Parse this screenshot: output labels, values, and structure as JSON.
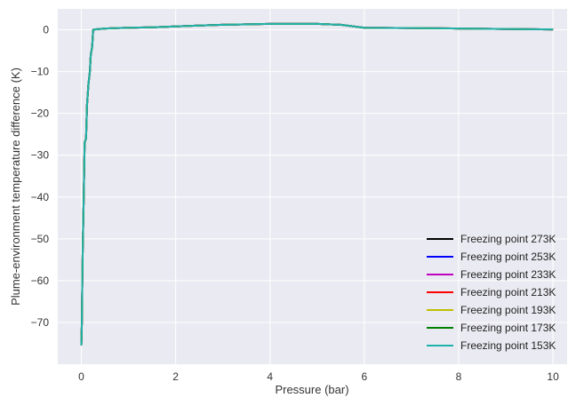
{
  "chart_data": {
    "type": "line",
    "title": "",
    "xlabel": "Pressure (bar)",
    "ylabel": "Plume-environment temperature difference (K)",
    "xlim": [
      -0.5,
      10.3
    ],
    "ylim": [
      -80,
      5
    ],
    "xticks": [
      0,
      2,
      4,
      6,
      8,
      10
    ],
    "yticks": [
      0,
      -10,
      -20,
      -30,
      -40,
      -50,
      -60,
      -70
    ],
    "x_tick_labels": [
      "0",
      "2",
      "4",
      "6",
      "8",
      "10"
    ],
    "y_tick_labels": [
      "0",
      "−10",
      "−20",
      "−30",
      "−40",
      "−50",
      "−60",
      "−70"
    ],
    "grid": true,
    "legend_position": "bottom-right",
    "background": "#eaeaf2",
    "series": [
      {
        "name": "Freezing point 273K",
        "color": "#000000"
      },
      {
        "name": "Freezing point 253K",
        "color": "#0000ff"
      },
      {
        "name": "Freezing point 233K",
        "color": "#bf00bf"
      },
      {
        "name": "Freezing point 213K",
        "color": "#ff0000"
      },
      {
        "name": "Freezing point 193K",
        "color": "#bfbf00"
      },
      {
        "name": "Freezing point 173K",
        "color": "#008000"
      },
      {
        "name": "Freezing point 153K",
        "color": "#20b2aa"
      }
    ],
    "x": [
      0.0,
      0.01,
      0.02,
      0.03,
      0.05,
      0.07,
      0.1,
      0.12,
      0.15,
      0.18,
      0.2,
      0.23,
      0.25,
      0.28,
      0.5,
      1.0,
      1.5,
      2.0,
      2.5,
      3.0,
      3.5,
      4.0,
      4.5,
      5.0,
      5.5,
      6.0,
      7.0,
      8.0,
      9.0,
      10.0
    ],
    "y": [
      -75.5,
      -70,
      -60,
      -52,
      -40,
      -27,
      -26,
      -18,
      -13,
      -10,
      -6,
      -4,
      0,
      0.1,
      0.3,
      0.5,
      0.6,
      0.8,
      1.0,
      1.2,
      1.3,
      1.4,
      1.4,
      1.4,
      1.2,
      0.5,
      0.4,
      0.3,
      0.2,
      0.1
    ]
  }
}
